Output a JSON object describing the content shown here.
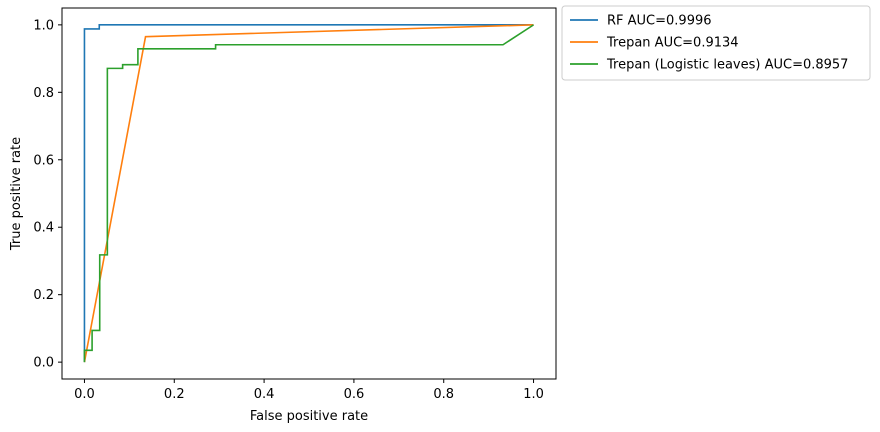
{
  "chart_data": {
    "type": "line",
    "title": "",
    "xlabel": "False positive rate",
    "ylabel": "True positive rate",
    "xlim": [
      -0.05,
      1.05
    ],
    "ylim": [
      -0.05,
      1.05
    ],
    "grid": false,
    "legend_placement": "outside-top-right",
    "xticks": [
      0.0,
      0.2,
      0.4,
      0.6,
      0.8,
      1.0
    ],
    "yticks": [
      0.0,
      0.2,
      0.4,
      0.6,
      0.8,
      1.0
    ],
    "xtick_labels": [
      "0.0",
      "0.2",
      "0.4",
      "0.6",
      "0.8",
      "1.0"
    ],
    "ytick_labels": [
      "0.0",
      "0.2",
      "0.4",
      "0.6",
      "0.8",
      "1.0"
    ],
    "series": [
      {
        "name": "RF AUC=0.9996",
        "color": "#1f77b4",
        "points": [
          [
            0.0,
            0.0
          ],
          [
            0.0,
            0.988
          ],
          [
            0.033,
            0.988
          ],
          [
            0.033,
            1.0
          ],
          [
            1.0,
            1.0
          ]
        ]
      },
      {
        "name": "Trepan AUC=0.9134",
        "color": "#ff7f0e",
        "points": [
          [
            0.0,
            0.0
          ],
          [
            0.136,
            0.965
          ],
          [
            1.0,
            1.0
          ]
        ]
      },
      {
        "name": "Trepan (Logistic leaves) AUC=0.8957",
        "color": "#2ca02c",
        "points": [
          [
            0.0,
            0.0
          ],
          [
            0.0,
            0.035
          ],
          [
            0.017,
            0.035
          ],
          [
            0.017,
            0.094
          ],
          [
            0.034,
            0.094
          ],
          [
            0.034,
            0.318
          ],
          [
            0.051,
            0.318
          ],
          [
            0.051,
            0.871
          ],
          [
            0.085,
            0.871
          ],
          [
            0.085,
            0.882
          ],
          [
            0.119,
            0.882
          ],
          [
            0.119,
            0.929
          ],
          [
            0.292,
            0.929
          ],
          [
            0.292,
            0.941
          ],
          [
            0.932,
            0.941
          ],
          [
            1.0,
            1.0
          ]
        ]
      }
    ]
  }
}
